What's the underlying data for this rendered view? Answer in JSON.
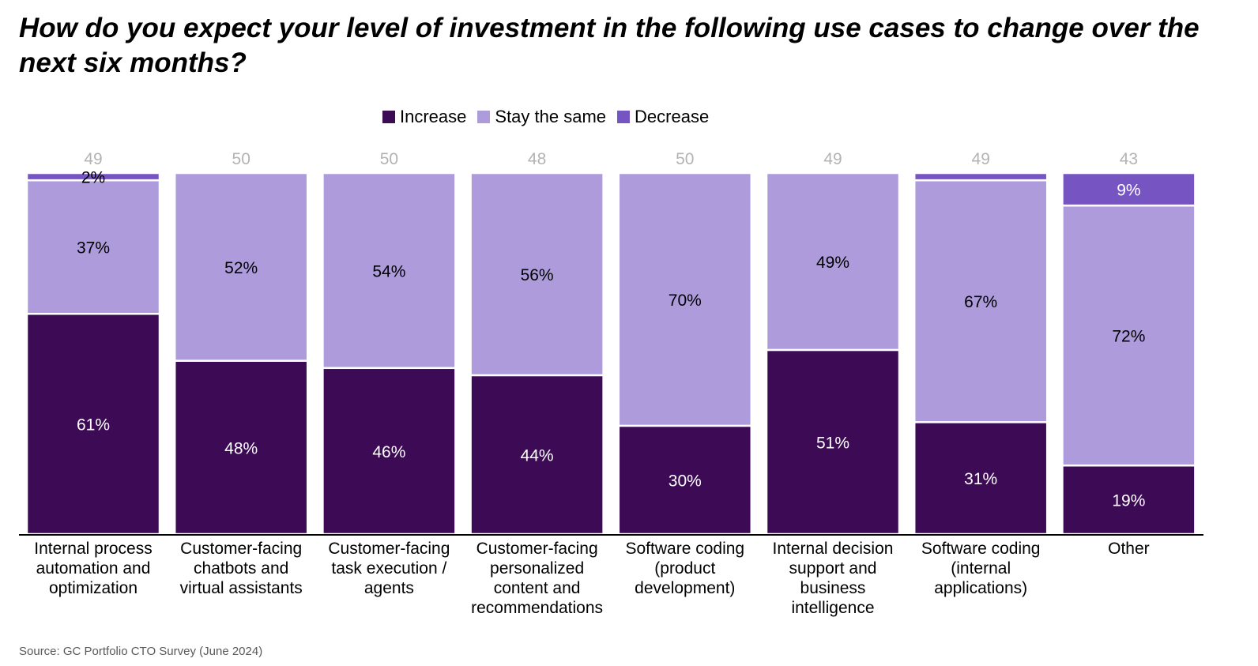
{
  "title": "How do you expect your level of investment in the following use cases to change over the next six months?",
  "source": "Source: GC Portfolio CTO Survey (June 2024)",
  "colors": {
    "increase": "#3d0b56",
    "same": "#ad9bdb",
    "decrease": "#7655c2",
    "count": "#b3b3b3"
  },
  "chart_data": {
    "type": "bar",
    "stacked": true,
    "normalized": true,
    "legend_position": "top-center",
    "categories": [
      "Internal process automation and optimization",
      "Customer-facing chatbots and virtual assistants",
      "Customer-facing task execution / agents",
      "Customer-facing personalized content and recommendations",
      "Software coding (product development)",
      "Internal decision support and business intelligence",
      "Software coding (internal applications)",
      "Other"
    ],
    "category_lines": [
      [
        "Internal process",
        "automation and",
        "optimization"
      ],
      [
        "Customer-facing",
        "chatbots and",
        "virtual assistants"
      ],
      [
        "Customer-facing",
        "task execution /",
        "agents"
      ],
      [
        "Customer-facing",
        "personalized",
        "content and",
        "recommendations"
      ],
      [
        "Software coding",
        "(product",
        "development)"
      ],
      [
        "Internal decision",
        "support and",
        "business",
        "intelligence"
      ],
      [
        "Software coding",
        "(internal",
        "applications)"
      ],
      [
        "Other"
      ]
    ],
    "counts": [
      49,
      50,
      50,
      48,
      50,
      49,
      49,
      43
    ],
    "series": [
      {
        "name": "Increase",
        "values": [
          61,
          48,
          46,
          44,
          30,
          51,
          31,
          19
        ]
      },
      {
        "name": "Stay the same",
        "values": [
          37,
          52,
          54,
          56,
          70,
          49,
          67,
          72
        ]
      },
      {
        "name": "Decrease",
        "values": [
          2,
          0,
          0,
          0,
          0,
          0,
          2,
          9
        ]
      }
    ],
    "data_labels": {
      "Increase": [
        "61%",
        "48%",
        "46%",
        "44%",
        "30%",
        "51%",
        "31%",
        "19%"
      ],
      "Stay the same": [
        "37%",
        "52%",
        "54%",
        "56%",
        "70%",
        "49%",
        "67%",
        "72%"
      ],
      "Decrease": [
        "2%",
        "",
        "",
        "",
        "",
        "",
        "",
        "9%"
      ]
    }
  }
}
